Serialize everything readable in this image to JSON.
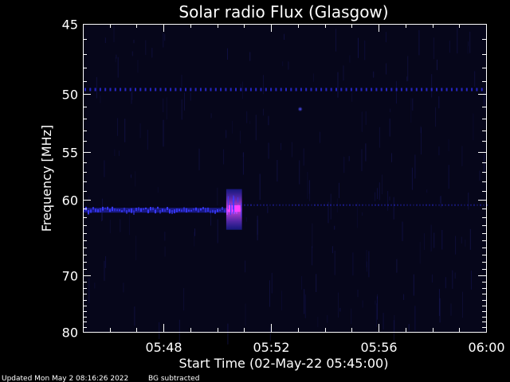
{
  "chart_data": {
    "type": "heatmap",
    "title": "Solar radio Flux (Glasgow)",
    "xlabel": "Start Time (02-May-22 05:45:00)",
    "ylabel": "Frequency [MHz]",
    "xlim": [
      "05:45:00",
      "06:00:00"
    ],
    "ylim": [
      45,
      80
    ],
    "y_scale": "reciprocal",
    "y_ticks": [
      45,
      50,
      55,
      60,
      70,
      80
    ],
    "x_ticks": [
      "05:48",
      "05:52",
      "05:56",
      "06:00"
    ],
    "grid": false,
    "colormap": "black-blue-magenta",
    "features": [
      {
        "type": "persistent-interference-line",
        "frequency_mhz": 49.6,
        "time_range": [
          "05:45:00",
          "06:00:00"
        ],
        "intensity": "low"
      },
      {
        "type": "spot",
        "frequency_mhz": 51.2,
        "time": "05:53:05",
        "intensity": "low"
      },
      {
        "type": "emission-band",
        "frequency_mhz": 61.2,
        "time_range": [
          "05:45:00",
          "05:50:45"
        ],
        "intensity": "medium"
      },
      {
        "type": "faint-band",
        "frequency_mhz": 60.6,
        "time_range": [
          "05:50:45",
          "06:00:00"
        ],
        "intensity": "very-low"
      },
      {
        "type": "burst",
        "frequency_range_mhz": [
          58.8,
          63.6
        ],
        "time_range": [
          "05:50:20",
          "05:50:55"
        ],
        "peak_frequency_mhz": 61.0,
        "intensity": "high"
      }
    ]
  },
  "footer": {
    "updated": "Updated Mon May  2 08:16:26 2022",
    "note": "BG subtracted"
  },
  "colors": {
    "background": "#000000",
    "plot_background": "#06061a",
    "axis": "#ffffff",
    "low": "#2a2ad8",
    "medium": "#3a3aff",
    "high": "#ff40ff"
  }
}
